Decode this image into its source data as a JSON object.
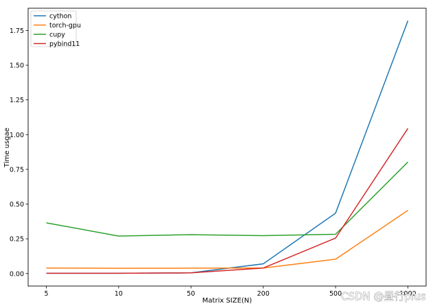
{
  "chart_data": {
    "type": "line",
    "categories": [
      "5",
      "10",
      "50",
      "200",
      "500",
      "1000"
    ],
    "xlabel": "Matrix SIZE(N)",
    "ylabel": "Time usgae",
    "ylim": [
      -0.09,
      1.91
    ],
    "yticks": [
      "0.00",
      "0.25",
      "0.50",
      "0.75",
      "1.00",
      "1.25",
      "1.50",
      "1.75"
    ],
    "grid": false,
    "legend_position": "top-left",
    "series": [
      {
        "name": "cython",
        "color": "#1f77b4",
        "values": [
          0.002,
          0.002,
          0.005,
          0.07,
          0.435,
          1.82
        ]
      },
      {
        "name": "torch-gpu",
        "color": "#ff7f0e",
        "values": [
          0.04,
          0.038,
          0.039,
          0.04,
          0.103,
          0.455
        ]
      },
      {
        "name": "cupy",
        "color": "#2ca02c",
        "values": [
          0.365,
          0.27,
          0.28,
          0.273,
          0.283,
          0.803
        ]
      },
      {
        "name": "pybind11",
        "color": "#d62728",
        "values": [
          0.002,
          0.002,
          0.005,
          0.04,
          0.255,
          1.045
        ]
      }
    ]
  },
  "watermark": "CSDN @昼行plus"
}
